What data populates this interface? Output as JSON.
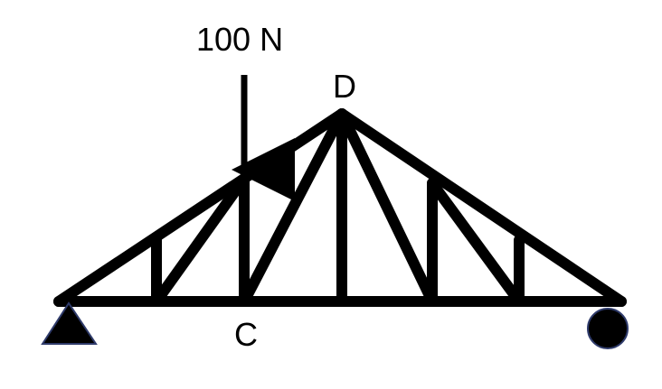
{
  "diagram": {
    "load_label": "100 N",
    "node_labels": {
      "apex": "D",
      "bottom_node": "C"
    },
    "colors": {
      "member": "#000000",
      "support_outline": "#2f3b6b",
      "background": "#ffffff"
    },
    "supports": {
      "left": "pin-support-triangle",
      "right": "roller-support-circle"
    }
  }
}
